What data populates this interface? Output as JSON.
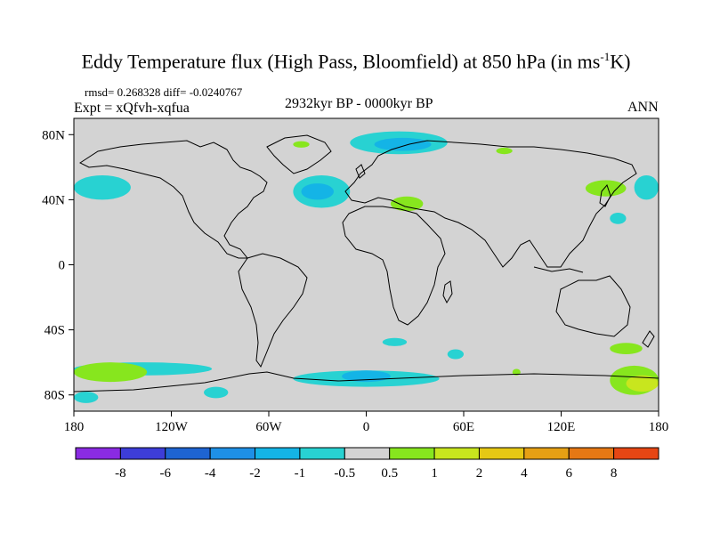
{
  "title": {
    "main": "Eddy Temperature flux (High Pass, Bloomfield) at 850 hPa (in ms",
    "sup": "-1",
    "suffix": "K)"
  },
  "stats": "rmsd= 0.268328 diff= -0.0240767",
  "experiment": "Expt = xQfvh-xqfua",
  "period": "2932kyr BP - 0000kyr BP",
  "season": "ANN",
  "map": {
    "projection": "cylindrical equidistant",
    "lon_range": [
      -180,
      180
    ],
    "lat_range": [
      -90,
      90
    ],
    "ocean_land_background": "#d3d3d3",
    "lat_ticks": [
      {
        "value": 80,
        "label": "80N"
      },
      {
        "value": 40,
        "label": "40N"
      },
      {
        "value": 0,
        "label": "0"
      },
      {
        "value": -40,
        "label": "40S"
      },
      {
        "value": -80,
        "label": "80S"
      }
    ],
    "lon_ticks": [
      {
        "value": -180,
        "label": "180"
      },
      {
        "value": -120,
        "label": "120W"
      },
      {
        "value": -60,
        "label": "60W"
      },
      {
        "value": 0,
        "label": "0"
      },
      {
        "value": 60,
        "label": "60E"
      },
      {
        "value": 120,
        "label": "120E"
      },
      {
        "value": 180,
        "label": "180"
      }
    ]
  },
  "colorbar": {
    "colors": [
      "#8a2be2",
      "#3d3dd8",
      "#1e64d2",
      "#1e90e6",
      "#14b4e6",
      "#28d2d2",
      "#d3d3d3",
      "#87e61e",
      "#c8e61e",
      "#e6c814",
      "#e6a014",
      "#e67814",
      "#e64614"
    ],
    "labels": [
      "-8",
      "-6",
      "-4",
      "-2",
      "-1",
      "-0.5",
      "0.5",
      "1",
      "2",
      "4",
      "6",
      "8"
    ]
  },
  "anomalies": [
    {
      "color": "#28d2d2",
      "lon": [
        -45,
        -10
      ],
      "lat": [
        35,
        55
      ]
    },
    {
      "color": "#14b4e6",
      "lon": [
        -40,
        -20
      ],
      "lat": [
        40,
        50
      ]
    },
    {
      "color": "#28d2d2",
      "lon": [
        -180,
        -145
      ],
      "lat": [
        40,
        55
      ]
    },
    {
      "color": "#28d2d2",
      "lon": [
        -10,
        50
      ],
      "lat": [
        68,
        82
      ]
    },
    {
      "color": "#14b4e6",
      "lon": [
        5,
        40
      ],
      "lat": [
        70,
        78
      ]
    },
    {
      "color": "#87e61e",
      "lon": [
        15,
        35
      ],
      "lat": [
        33,
        42
      ]
    },
    {
      "color": "#87e61e",
      "lon": [
        135,
        160
      ],
      "lat": [
        42,
        52
      ]
    },
    {
      "color": "#87e61e",
      "lon": [
        80,
        90
      ],
      "lat": [
        68,
        72
      ]
    },
    {
      "color": "#87e61e",
      "lon": [
        -45,
        -35
      ],
      "lat": [
        72,
        76
      ]
    },
    {
      "color": "#28d2d2",
      "lon": [
        165,
        180
      ],
      "lat": [
        40,
        55
      ]
    },
    {
      "color": "#28d2d2",
      "lon": [
        150,
        160
      ],
      "lat": [
        25,
        32
      ]
    },
    {
      "color": "#28d2d2",
      "lon": [
        -180,
        -95
      ],
      "lat": [
        -68,
        -60
      ]
    },
    {
      "color": "#87e61e",
      "lon": [
        -180,
        -135
      ],
      "lat": [
        -72,
        -60
      ]
    },
    {
      "color": "#28d2d2",
      "lon": [
        -180,
        -165
      ],
      "lat": [
        -85,
        -78
      ]
    },
    {
      "color": "#28d2d2",
      "lon": [
        -45,
        45
      ],
      "lat": [
        -75,
        -65
      ]
    },
    {
      "color": "#14b4e6",
      "lon": [
        -15,
        15
      ],
      "lat": [
        -72,
        -65
      ]
    },
    {
      "color": "#28d2d2",
      "lon": [
        -100,
        -85
      ],
      "lat": [
        -82,
        -75
      ]
    },
    {
      "color": "#28d2d2",
      "lon": [
        10,
        25
      ],
      "lat": [
        -50,
        -45
      ]
    },
    {
      "color": "#28d2d2",
      "lon": [
        50,
        60
      ],
      "lat": [
        -58,
        -52
      ]
    },
    {
      "color": "#87e61e",
      "lon": [
        150,
        180
      ],
      "lat": [
        -80,
        -62
      ]
    },
    {
      "color": "#c8e61e",
      "lon": [
        160,
        180
      ],
      "lat": [
        -78,
        -68
      ]
    },
    {
      "color": "#87e61e",
      "lon": [
        150,
        170
      ],
      "lat": [
        -55,
        -48
      ]
    },
    {
      "color": "#87e61e",
      "lon": [
        90,
        95
      ],
      "lat": [
        -68,
        -64
      ]
    }
  ]
}
